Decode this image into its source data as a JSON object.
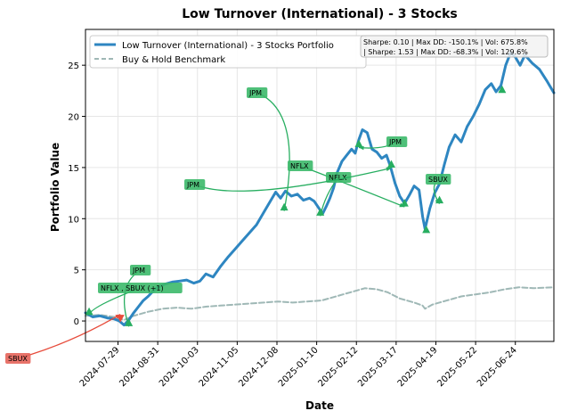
{
  "chart_data": {
    "type": "line",
    "title": "Low Turnover (International) - 3 Stocks",
    "xlabel": "Date",
    "ylabel": "Portfolio Value",
    "xlim": [
      "2024-07-02",
      "2025-07-26"
    ],
    "ylim": [
      -2,
      28.5
    ],
    "grid": true,
    "legend_position": "upper-left",
    "x_ticks": [
      "2024-07-29",
      "2024-08-31",
      "2024-10-03",
      "2024-11-05",
      "2024-12-08",
      "2025-01-10",
      "2025-02-12",
      "2025-03-17",
      "2025-04-19",
      "2025-05-22",
      "2025-06-24"
    ],
    "y_ticks": [
      0,
      5,
      10,
      15,
      20,
      25
    ],
    "series": [
      {
        "name": "Low Turnover (International) - 3 Stocks Portfolio",
        "color": "#2e86c1",
        "style": "solid",
        "points": [
          [
            "2024-07-02",
            0.8
          ],
          [
            "2024-07-08",
            0.4
          ],
          [
            "2024-07-14",
            0.5
          ],
          [
            "2024-07-20",
            0.3
          ],
          [
            "2024-07-26",
            0.2
          ],
          [
            "2024-07-30",
            0.0
          ],
          [
            "2024-08-03",
            -0.4
          ],
          [
            "2024-08-07",
            0.1
          ],
          [
            "2024-08-11",
            0.8
          ],
          [
            "2024-08-15",
            1.4
          ],
          [
            "2024-08-19",
            2.0
          ],
          [
            "2024-08-23",
            2.4
          ],
          [
            "2024-08-27",
            2.9
          ],
          [
            "2024-08-31",
            3.3
          ],
          [
            "2024-09-06",
            3.6
          ],
          [
            "2024-09-12",
            3.8
          ],
          [
            "2024-09-18",
            3.9
          ],
          [
            "2024-09-24",
            4.0
          ],
          [
            "2024-09-30",
            3.7
          ],
          [
            "2024-10-05",
            3.9
          ],
          [
            "2024-10-10",
            4.6
          ],
          [
            "2024-10-16",
            4.3
          ],
          [
            "2024-10-22",
            5.3
          ],
          [
            "2024-10-28",
            6.2
          ],
          [
            "2024-11-03",
            7.0
          ],
          [
            "2024-11-09",
            7.8
          ],
          [
            "2024-11-15",
            8.6
          ],
          [
            "2024-11-21",
            9.4
          ],
          [
            "2024-11-27",
            10.6
          ],
          [
            "2024-12-03",
            11.8
          ],
          [
            "2024-12-07",
            12.6
          ],
          [
            "2024-12-11",
            12.0
          ],
          [
            "2024-12-15",
            12.7
          ],
          [
            "2024-12-20",
            12.2
          ],
          [
            "2024-12-25",
            12.4
          ],
          [
            "2024-12-30",
            11.8
          ],
          [
            "2025-01-04",
            12.0
          ],
          [
            "2025-01-08",
            11.7
          ],
          [
            "2025-01-12",
            11.0
          ],
          [
            "2025-01-15",
            10.5
          ],
          [
            "2025-01-18",
            11.2
          ],
          [
            "2025-01-21",
            12.0
          ],
          [
            "2025-01-24",
            13.0
          ],
          [
            "2025-01-27",
            14.5
          ],
          [
            "2025-01-31",
            15.6
          ],
          [
            "2025-02-04",
            16.2
          ],
          [
            "2025-02-08",
            16.8
          ],
          [
            "2025-02-11",
            16.4
          ],
          [
            "2025-02-14",
            17.7
          ],
          [
            "2025-02-17",
            18.7
          ],
          [
            "2025-02-21",
            18.4
          ],
          [
            "2025-02-25",
            16.8
          ],
          [
            "2025-03-01",
            16.5
          ],
          [
            "2025-03-05",
            15.9
          ],
          [
            "2025-03-09",
            16.2
          ],
          [
            "2025-03-12",
            15.2
          ],
          [
            "2025-03-16",
            13.5
          ],
          [
            "2025-03-20",
            12.2
          ],
          [
            "2025-03-24",
            11.5
          ],
          [
            "2025-03-28",
            12.3
          ],
          [
            "2025-04-01",
            13.2
          ],
          [
            "2025-04-05",
            12.8
          ],
          [
            "2025-04-08",
            10.2
          ],
          [
            "2025-04-10",
            9.0
          ],
          [
            "2025-04-14",
            11.0
          ],
          [
            "2025-04-18",
            12.5
          ],
          [
            "2025-04-22",
            13.4
          ],
          [
            "2025-04-26",
            15.3
          ],
          [
            "2025-04-30",
            17.0
          ],
          [
            "2025-05-05",
            18.2
          ],
          [
            "2025-05-10",
            17.5
          ],
          [
            "2025-05-15",
            19.0
          ],
          [
            "2025-05-20",
            20.0
          ],
          [
            "2025-05-25",
            21.2
          ],
          [
            "2025-05-30",
            22.6
          ],
          [
            "2025-06-04",
            23.2
          ],
          [
            "2025-06-08",
            22.4
          ],
          [
            "2025-06-12",
            23.0
          ],
          [
            "2025-06-16",
            25.0
          ],
          [
            "2025-06-20",
            26.2
          ],
          [
            "2025-06-24",
            25.8
          ],
          [
            "2025-06-28",
            25.0
          ],
          [
            "2025-07-02",
            26.0
          ],
          [
            "2025-07-08",
            25.2
          ],
          [
            "2025-07-14",
            24.6
          ],
          [
            "2025-07-20",
            23.5
          ],
          [
            "2025-07-26",
            22.3
          ]
        ]
      },
      {
        "name": "Buy & Hold Benchmark",
        "color": "#9fb8b6",
        "style": "dashed",
        "points": [
          [
            "2024-07-02",
            0.5
          ],
          [
            "2024-07-14",
            0.6
          ],
          [
            "2024-07-26",
            0.4
          ],
          [
            "2024-08-03",
            0.1
          ],
          [
            "2024-08-11",
            0.5
          ],
          [
            "2024-08-23",
            0.9
          ],
          [
            "2024-09-04",
            1.2
          ],
          [
            "2024-09-16",
            1.3
          ],
          [
            "2024-09-28",
            1.2
          ],
          [
            "2024-10-10",
            1.4
          ],
          [
            "2024-10-22",
            1.5
          ],
          [
            "2024-11-03",
            1.6
          ],
          [
            "2024-11-15",
            1.7
          ],
          [
            "2024-11-27",
            1.8
          ],
          [
            "2024-12-09",
            1.9
          ],
          [
            "2024-12-21",
            1.8
          ],
          [
            "2025-01-02",
            1.9
          ],
          [
            "2025-01-14",
            2.0
          ],
          [
            "2025-01-26",
            2.4
          ],
          [
            "2025-02-07",
            2.8
          ],
          [
            "2025-02-19",
            3.2
          ],
          [
            "2025-03-01",
            3.1
          ],
          [
            "2025-03-10",
            2.8
          ],
          [
            "2025-03-20",
            2.2
          ],
          [
            "2025-04-01",
            1.8
          ],
          [
            "2025-04-08",
            1.5
          ],
          [
            "2025-04-10",
            1.2
          ],
          [
            "2025-04-16",
            1.6
          ],
          [
            "2025-04-28",
            2.0
          ],
          [
            "2025-05-10",
            2.4
          ],
          [
            "2025-05-22",
            2.6
          ],
          [
            "2025-06-03",
            2.8
          ],
          [
            "2025-06-15",
            3.1
          ],
          [
            "2025-06-27",
            3.3
          ],
          [
            "2025-07-09",
            3.2
          ],
          [
            "2025-07-26",
            3.3
          ]
        ]
      }
    ],
    "legend": [
      {
        "label": "Low Turnover (International) - 3 Stocks Portfolio",
        "color": "#2e86c1",
        "style": "solid"
      },
      {
        "label": "Buy & Hold Benchmark",
        "color": "#9fb8b6",
        "style": "dashed"
      }
    ],
    "stats_box": {
      "line1": "Sharpe: 0.10 | Max DD: -150.1% | Vol: 675.8%",
      "line2": "| Sharpe: 1.53 | Max DD: -68.3% | Vol: 129.6%"
    },
    "buy_markers": [
      {
        "date": "2024-07-05",
        "value": 0.9
      },
      {
        "date": "2024-08-07",
        "value": -0.2
      },
      {
        "date": "2024-12-14",
        "value": 11.1
      },
      {
        "date": "2025-01-13",
        "value": 10.6
      },
      {
        "date": "2025-02-14",
        "value": 17.3
      },
      {
        "date": "2025-03-13",
        "value": 15.3
      },
      {
        "date": "2025-03-24",
        "value": 11.5
      },
      {
        "date": "2025-04-11",
        "value": 8.9
      },
      {
        "date": "2025-04-22",
        "value": 11.8
      },
      {
        "date": "2025-06-13",
        "value": 22.6
      }
    ],
    "sell_markers": [
      {
        "date": "2024-07-31",
        "value": 0.3
      }
    ],
    "annotations": [
      {
        "text": "JPM",
        "kind": "buy",
        "target_date": "2024-08-07",
        "target_value": -0.2
      },
      {
        "text": "NFLX , SBUX  (+1)",
        "kind": "buy",
        "target_date": "2024-07-05",
        "target_value": 0.9
      },
      {
        "text": "SBUX",
        "kind": "sell",
        "target_date": "2024-07-31",
        "target_value": 0.3
      },
      {
        "text": "JPM",
        "kind": "buy",
        "target_date": "2024-12-14",
        "target_value": 11.1
      },
      {
        "text": "JPM",
        "kind": "buy",
        "target_date": "2025-02-14",
        "target_value": 17.3
      },
      {
        "text": "NFLX",
        "kind": "buy",
        "target_date": "2025-03-24",
        "target_value": 11.5
      },
      {
        "text": "NFLX",
        "kind": "buy",
        "target_date": "2025-01-13",
        "target_value": 10.6
      },
      {
        "text": "JPM",
        "kind": "buy",
        "target_date": "2025-03-13",
        "target_value": 15.3
      },
      {
        "text": "SBUX",
        "kind": "buy",
        "target_date": "2025-04-22",
        "target_value": 11.8
      }
    ],
    "colors": {
      "buy": "#27ae60",
      "buy_box": "#3cb96a",
      "sell": "#e74c3c",
      "sell_box": "#e5645a",
      "grid": "#e6e6e6"
    }
  }
}
